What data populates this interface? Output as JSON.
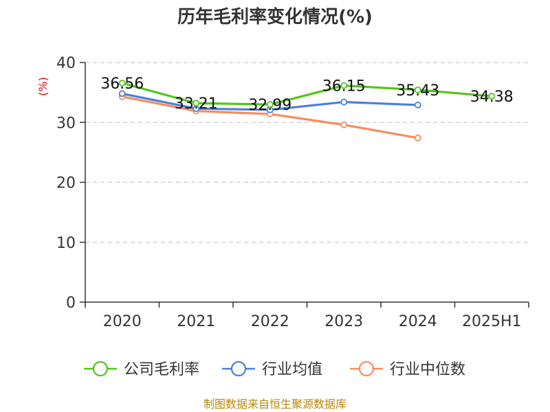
{
  "chart_data": {
    "type": "line",
    "title": "历年毛利率变化情况(%)",
    "ylabel": "(%)",
    "categories": [
      "2020",
      "2021",
      "2022",
      "2023",
      "2024",
      "2025H1"
    ],
    "ylim": [
      0,
      40
    ],
    "yticks": [
      0,
      10,
      20,
      30,
      40
    ],
    "grid": true,
    "legend_position": "bottom",
    "series": [
      {
        "name": "公司毛利率",
        "color": "#52c41a",
        "values": [
          36.56,
          33.21,
          32.99,
          36.15,
          35.43,
          34.38
        ],
        "labels": [
          "36.56",
          "33.21",
          "32.99",
          "36.15",
          "35.43",
          "34.38"
        ]
      },
      {
        "name": "行业均值",
        "color": "#4a7fdc",
        "values": [
          34.8,
          32.3,
          32.1,
          33.4,
          32.9,
          null
        ]
      },
      {
        "name": "行业中位数",
        "color": "#fb8a5a",
        "values": [
          34.3,
          31.9,
          31.4,
          29.6,
          27.4,
          null
        ]
      }
    ],
    "source": "制图数据来自恒生聚源数据库"
  }
}
